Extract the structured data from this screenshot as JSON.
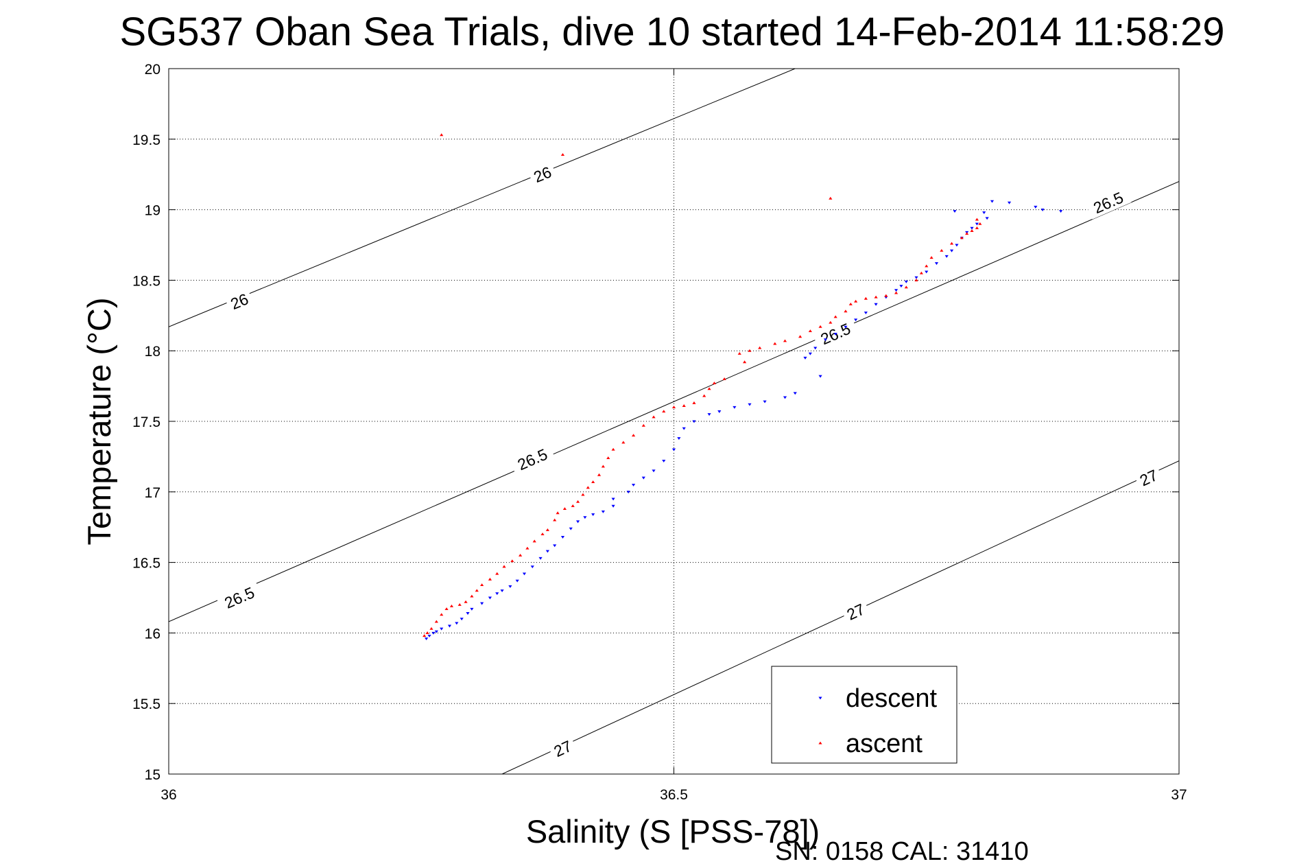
{
  "chart_data": {
    "type": "scatter",
    "title": "SG537 Oban Sea Trials, dive 10 started 14-Feb-2014 11:58:29",
    "xlabel": "Salinity (S [PSS-78])",
    "ylabel": "Temperature (°C)",
    "xlim": [
      36,
      37
    ],
    "ylim": [
      15,
      20
    ],
    "x_ticks": [
      36,
      36.5,
      37
    ],
    "x_tick_labels": [
      "36",
      "36.5",
      "37"
    ],
    "y_ticks": [
      15,
      15.5,
      16,
      16.5,
      17,
      17.5,
      18,
      18.5,
      19,
      19.5,
      20
    ],
    "y_tick_labels": [
      "15",
      "15.5",
      "16",
      "16.5",
      "17",
      "17.5",
      "18",
      "18.5",
      "19",
      "19.5",
      "20"
    ],
    "grid": true,
    "legend_position": "bottom-right",
    "footer": "SN: 0158  CAL: 31410",
    "density_contours": [
      {
        "label": "26",
        "points": [
          [
            36,
            18.17
          ],
          [
            36.62,
            20
          ]
        ],
        "label_positions": [
          [
            36.07,
            18.35
          ],
          [
            36.37,
            19.25
          ]
        ]
      },
      {
        "label": "26.5",
        "points": [
          [
            36,
            16.08
          ],
          [
            37,
            19.2
          ]
        ],
        "label_positions": [
          [
            36.07,
            16.25
          ],
          [
            36.36,
            17.23
          ],
          [
            36.66,
            18.12
          ],
          [
            36.93,
            19.05
          ]
        ]
      },
      {
        "label": "27",
        "points": [
          [
            36.33,
            15
          ],
          [
            37,
            17.22
          ]
        ],
        "label_positions": [
          [
            36.39,
            15.18
          ],
          [
            36.68,
            16.15
          ],
          [
            36.97,
            17.1
          ]
        ]
      }
    ],
    "series": [
      {
        "name": "descent",
        "color": "#0000ff",
        "marker": "triangle-down",
        "points": [
          [
            36.255,
            15.96
          ],
          [
            36.258,
            15.98
          ],
          [
            36.262,
            16.0
          ],
          [
            36.265,
            16.01
          ],
          [
            36.27,
            16.03
          ],
          [
            36.278,
            16.05
          ],
          [
            36.285,
            16.07
          ],
          [
            36.29,
            16.1
          ],
          [
            36.296,
            16.14
          ],
          [
            36.3,
            16.17
          ],
          [
            36.31,
            16.21
          ],
          [
            36.318,
            16.25
          ],
          [
            36.325,
            16.28
          ],
          [
            36.33,
            16.3
          ],
          [
            36.338,
            16.33
          ],
          [
            36.345,
            16.37
          ],
          [
            36.352,
            16.42
          ],
          [
            36.36,
            16.47
          ],
          [
            36.368,
            16.53
          ],
          [
            36.375,
            16.58
          ],
          [
            36.382,
            16.62
          ],
          [
            36.39,
            16.68
          ],
          [
            36.398,
            16.74
          ],
          [
            36.405,
            16.79
          ],
          [
            36.412,
            16.82
          ],
          [
            36.42,
            16.84
          ],
          [
            36.43,
            16.86
          ],
          [
            36.44,
            16.9
          ],
          [
            36.44,
            16.95
          ],
          [
            36.455,
            17.0
          ],
          [
            36.46,
            17.05
          ],
          [
            36.47,
            17.1
          ],
          [
            36.48,
            17.15
          ],
          [
            36.49,
            17.22
          ],
          [
            36.5,
            17.3
          ],
          [
            36.505,
            17.38
          ],
          [
            36.51,
            17.45
          ],
          [
            36.52,
            17.5
          ],
          [
            36.535,
            17.55
          ],
          [
            36.545,
            17.57
          ],
          [
            36.56,
            17.6
          ],
          [
            36.575,
            17.62
          ],
          [
            36.59,
            17.64
          ],
          [
            36.61,
            17.67
          ],
          [
            36.62,
            17.7
          ],
          [
            36.645,
            17.82
          ],
          [
            36.63,
            17.95
          ],
          [
            36.635,
            17.98
          ],
          [
            36.64,
            18.02
          ],
          [
            36.65,
            18.08
          ],
          [
            36.66,
            18.12
          ],
          [
            36.67,
            18.17
          ],
          [
            36.68,
            18.22
          ],
          [
            36.69,
            18.27
          ],
          [
            36.7,
            18.33
          ],
          [
            36.71,
            18.38
          ],
          [
            36.72,
            18.43
          ],
          [
            36.725,
            18.46
          ],
          [
            36.73,
            18.49
          ],
          [
            36.74,
            18.52
          ],
          [
            36.75,
            18.56
          ],
          [
            36.76,
            18.62
          ],
          [
            36.77,
            18.67
          ],
          [
            36.775,
            18.71
          ],
          [
            36.78,
            18.75
          ],
          [
            36.785,
            18.8
          ],
          [
            36.79,
            18.84
          ],
          [
            36.795,
            18.87
          ],
          [
            36.8,
            18.9
          ],
          [
            36.81,
            18.94
          ],
          [
            36.815,
            19.06
          ],
          [
            36.832,
            19.05
          ],
          [
            36.858,
            19.02
          ],
          [
            36.865,
            19.0
          ],
          [
            36.883,
            18.99
          ],
          [
            36.778,
            18.99
          ],
          [
            36.807,
            18.98
          ]
        ]
      },
      {
        "name": "ascent",
        "color": "#ff0000",
        "marker": "triangle-up",
        "points": [
          [
            36.253,
            15.98
          ],
          [
            36.256,
            16.0
          ],
          [
            36.26,
            16.03
          ],
          [
            36.265,
            16.08
          ],
          [
            36.27,
            16.13
          ],
          [
            36.275,
            16.17
          ],
          [
            36.28,
            16.19
          ],
          [
            36.288,
            16.2
          ],
          [
            36.294,
            16.22
          ],
          [
            36.3,
            16.26
          ],
          [
            36.305,
            16.3
          ],
          [
            36.31,
            16.34
          ],
          [
            36.318,
            16.38
          ],
          [
            36.325,
            16.42
          ],
          [
            36.332,
            16.47
          ],
          [
            36.34,
            16.51
          ],
          [
            36.348,
            16.55
          ],
          [
            36.355,
            16.6
          ],
          [
            36.362,
            16.65
          ],
          [
            36.37,
            16.7
          ],
          [
            36.375,
            16.73
          ],
          [
            36.382,
            16.8
          ],
          [
            36.385,
            16.85
          ],
          [
            36.392,
            16.88
          ],
          [
            36.4,
            16.9
          ],
          [
            36.405,
            16.93
          ],
          [
            36.41,
            16.98
          ],
          [
            36.415,
            17.03
          ],
          [
            36.42,
            17.07
          ],
          [
            36.426,
            17.12
          ],
          [
            36.43,
            17.18
          ],
          [
            36.435,
            17.24
          ],
          [
            36.44,
            17.3
          ],
          [
            36.45,
            17.35
          ],
          [
            36.46,
            17.4
          ],
          [
            36.47,
            17.47
          ],
          [
            36.48,
            17.53
          ],
          [
            36.49,
            17.57
          ],
          [
            36.5,
            17.6
          ],
          [
            36.51,
            17.61
          ],
          [
            36.52,
            17.63
          ],
          [
            36.53,
            17.68
          ],
          [
            36.535,
            17.73
          ],
          [
            36.54,
            17.77
          ],
          [
            36.55,
            17.8
          ],
          [
            36.57,
            17.92
          ],
          [
            36.565,
            17.98
          ],
          [
            36.575,
            18.0
          ],
          [
            36.585,
            18.02
          ],
          [
            36.6,
            18.05
          ],
          [
            36.61,
            18.07
          ],
          [
            36.625,
            18.1
          ],
          [
            36.635,
            18.14
          ],
          [
            36.645,
            18.17
          ],
          [
            36.655,
            18.2
          ],
          [
            36.66,
            18.24
          ],
          [
            36.67,
            18.28
          ],
          [
            36.675,
            18.33
          ],
          [
            36.68,
            18.35
          ],
          [
            36.69,
            18.37
          ],
          [
            36.7,
            18.38
          ],
          [
            36.71,
            18.39
          ],
          [
            36.72,
            18.41
          ],
          [
            36.73,
            18.45
          ],
          [
            36.74,
            18.5
          ],
          [
            36.745,
            18.55
          ],
          [
            36.75,
            18.6
          ],
          [
            36.755,
            18.66
          ],
          [
            36.765,
            18.71
          ],
          [
            36.775,
            18.76
          ],
          [
            36.785,
            18.8
          ],
          [
            36.79,
            18.83
          ],
          [
            36.795,
            18.85
          ],
          [
            36.8,
            18.87
          ],
          [
            36.803,
            18.9
          ],
          [
            36.8,
            18.93
          ],
          [
            36.27,
            19.53
          ],
          [
            36.39,
            19.39
          ],
          [
            36.655,
            19.08
          ]
        ]
      }
    ]
  }
}
